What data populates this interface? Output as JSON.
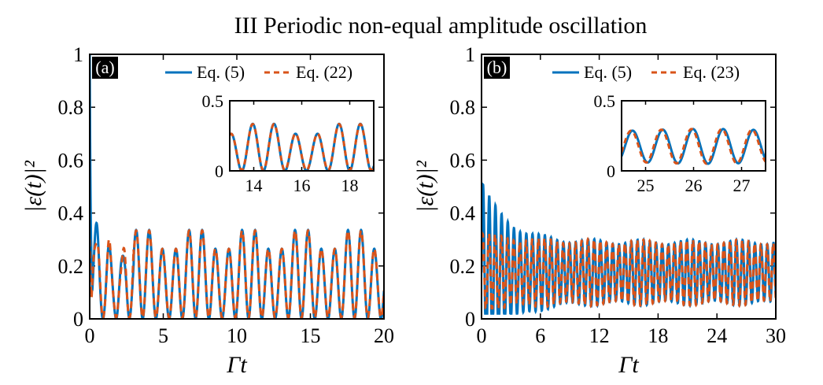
{
  "figure_title": "III Periodic non-equal amplitude oscillation",
  "colors": {
    "eq5": "#0072BD",
    "eq_approx": "#D95319"
  },
  "chart_data": [
    {
      "type": "line",
      "panel": "(a)",
      "xlabel": "Γt",
      "ylabel": "|ε(t)|²",
      "xlim": [
        0,
        20
      ],
      "ylim": [
        0,
        1
      ],
      "xticks": [
        "0",
        "5",
        "10",
        "15",
        "20"
      ],
      "yticks": [
        "0",
        "0.2",
        "0.4",
        "0.6",
        "0.8",
        "1"
      ],
      "legend_position": "top-right",
      "series": [
        {
          "name": "Eq. (5)",
          "style": "solid"
        },
        {
          "name": "Eq. (22)",
          "style": "dashed"
        }
      ],
      "model": {
        "peaks": [
          0.35,
          0.25
        ],
        "period": 1.8,
        "start_value": 1.0,
        "transient_decay": 0.08
      },
      "inset": {
        "xlim": [
          13,
          19
        ],
        "ylim": [
          0,
          0.5
        ],
        "xticks": [
          "14",
          "16",
          "18"
        ],
        "yticks": [
          "0",
          "0.5"
        ],
        "legend_position": "none"
      }
    },
    {
      "type": "line",
      "panel": "(b)",
      "xlabel": "Γt",
      "ylabel": "|ε(t)|²",
      "xlim": [
        0,
        30
      ],
      "ylim": [
        0,
        1
      ],
      "xticks": [
        "0",
        "6",
        "12",
        "18",
        "24",
        "30"
      ],
      "yticks": [
        "0",
        "0.2",
        "0.4",
        "0.6",
        "0.8",
        "1"
      ],
      "legend_position": "top-right",
      "series": [
        {
          "name": "Eq. (5)",
          "style": "solid"
        },
        {
          "name": "Eq. (23)",
          "style": "dashed"
        }
      ],
      "model": {
        "center": 0.175,
        "amplitude": 0.115,
        "period": 0.63,
        "initial_peak": 0.52,
        "initial_trough": 0.02
      },
      "inset": {
        "xlim": [
          24.5,
          27.5
        ],
        "ylim": [
          0,
          0.5
        ],
        "xticks": [
          "25",
          "26",
          "27"
        ],
        "yticks": [
          "0",
          "0.5"
        ],
        "legend_position": "none"
      }
    }
  ]
}
